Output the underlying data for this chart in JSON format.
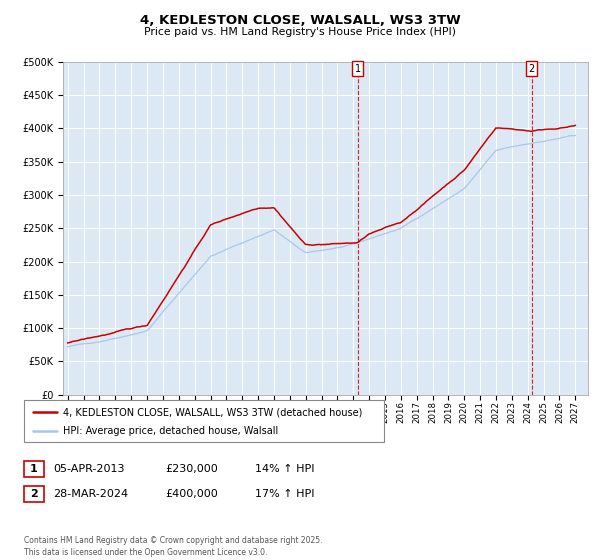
{
  "title": "4, KEDLESTON CLOSE, WALSALL, WS3 3TW",
  "subtitle": "Price paid vs. HM Land Registry's House Price Index (HPI)",
  "x_start_year": 1995,
  "x_end_year": 2027,
  "y_min": 0,
  "y_max": 500000,
  "y_ticks": [
    0,
    50000,
    100000,
    150000,
    200000,
    250000,
    300000,
    350000,
    400000,
    450000,
    500000
  ],
  "y_tick_labels": [
    "£0",
    "£50K",
    "£100K",
    "£150K",
    "£200K",
    "£250K",
    "£300K",
    "£350K",
    "£400K",
    "£450K",
    "£500K"
  ],
  "event1_year": 2013.27,
  "event1_label": "1",
  "event1_date": "05-APR-2013",
  "event1_price": "£230,000",
  "event1_hpi": "14% ↑ HPI",
  "event2_year": 2024.25,
  "event2_label": "2",
  "event2_date": "28-MAR-2024",
  "event2_price": "£400,000",
  "event2_hpi": "17% ↑ HPI",
  "legend_line1": "4, KEDLESTON CLOSE, WALSALL, WS3 3TW (detached house)",
  "legend_line2": "HPI: Average price, detached house, Walsall",
  "footer": "Contains HM Land Registry data © Crown copyright and database right 2025.\nThis data is licensed under the Open Government Licence v3.0.",
  "chart_bg": "#dce9f5",
  "line_red": "#cc0000",
  "line_blue": "#a8c8e8",
  "grid_color": "#ffffff",
  "fig_bg": "#ffffff"
}
